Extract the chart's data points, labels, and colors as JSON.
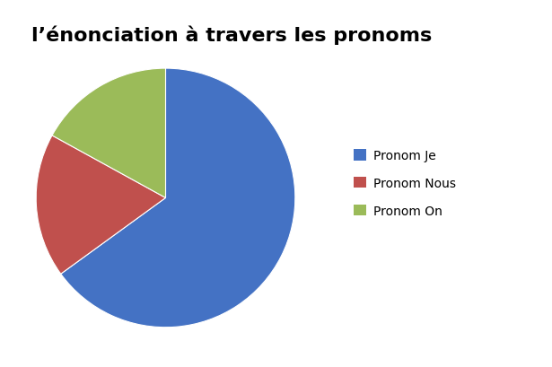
{
  "title": "l’énonciation à travers les pronoms",
  "labels": [
    "Pronom Je",
    "Pronom Nous",
    "Pronom On"
  ],
  "values": [
    65,
    18,
    17
  ],
  "colors": [
    "#4472C4",
    "#C0504D",
    "#9BBB59"
  ],
  "legend_labels": [
    "Pronom Je",
    "Pronom Nous",
    "Pronom On"
  ],
  "startangle": 90,
  "background_color": "#ffffff",
  "title_fontsize": 16,
  "legend_fontsize": 10
}
